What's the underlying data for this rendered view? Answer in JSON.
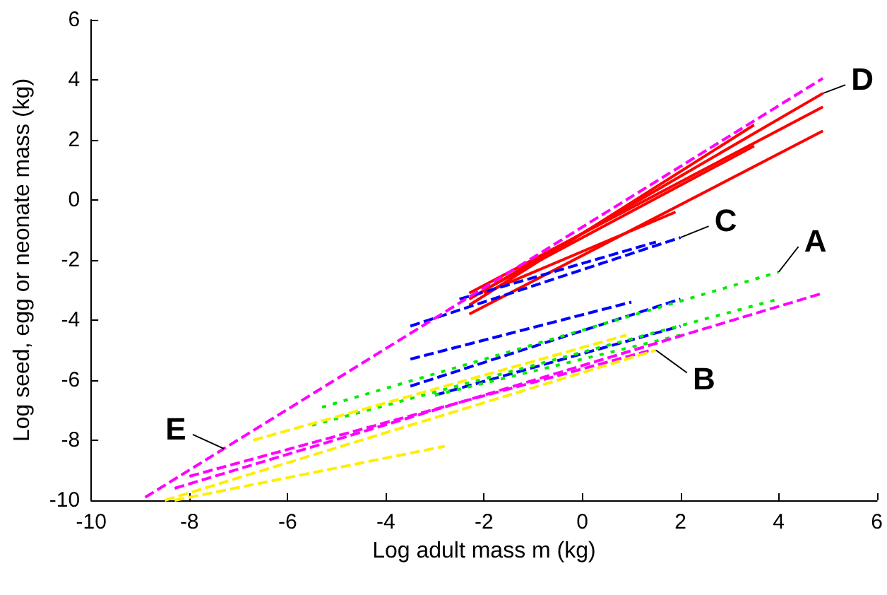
{
  "chart_data": {
    "type": "line",
    "xlabel": "Log adult mass m (kg)",
    "ylabel": "Log seed, egg or neonate mass (kg)",
    "xlim": [
      -10,
      6
    ],
    "xticks": [
      -10,
      -8,
      -6,
      -4,
      -2,
      0,
      2,
      4,
      6
    ],
    "ylim": [
      -10,
      6
    ],
    "yticks": [
      -10,
      -8,
      -6,
      -4,
      -2,
      0,
      2,
      4,
      6
    ],
    "marker": "none",
    "series": [
      {
        "color": "#ff0000",
        "line_style": "solid",
        "x": [
          -2.3,
          4.9
        ],
        "values": [
          -3.3,
          3.55
        ]
      },
      {
        "color": "#ff0000",
        "line_style": "solid",
        "x": [
          -2.3,
          4.9
        ],
        "values": [
          -3.1,
          3.1
        ]
      },
      {
        "color": "#ff0000",
        "line_style": "solid",
        "x": [
          -2.3,
          4.9
        ],
        "values": [
          -3.8,
          2.3
        ]
      },
      {
        "color": "#ff0000",
        "line_style": "solid",
        "x": [
          -2,
          3.5
        ],
        "values": [
          -3,
          1.8
        ]
      },
      {
        "color": "#ff0000",
        "line_style": "solid",
        "x": [
          -2.3,
          3.5
        ],
        "values": [
          -3.5,
          2.5
        ]
      },
      {
        "color": "#ff0000",
        "line_style": "solid",
        "x": [
          -2,
          1.9
        ],
        "values": [
          -3.1,
          -0.4
        ]
      },
      {
        "color": "#0000ff",
        "line_style": "dashed",
        "x": [
          -3.5,
          2
        ],
        "values": [
          -4.2,
          -1.25
        ]
      },
      {
        "color": "#0000ff",
        "line_style": "dashed",
        "x": [
          -2.5,
          1.5
        ],
        "values": [
          -3.3,
          -1.4
        ]
      },
      {
        "color": "#0000ff",
        "line_style": "dashed",
        "x": [
          -3.5,
          2
        ],
        "values": [
          -6.2,
          -3.3
        ]
      },
      {
        "color": "#0000ff",
        "line_style": "dashed",
        "x": [
          -3.5,
          1
        ],
        "values": [
          -5.3,
          -3.4
        ]
      },
      {
        "color": "#0000ff",
        "line_style": "dashed",
        "x": [
          -3,
          2
        ],
        "values": [
          -6.5,
          -4.2
        ]
      },
      {
        "color": "#00ee00",
        "line_style": "dotted",
        "x": [
          -5.3,
          4
        ],
        "values": [
          -6.9,
          -2.4
        ]
      },
      {
        "color": "#00ee00",
        "line_style": "dotted",
        "x": [
          -5.5,
          4
        ],
        "values": [
          -7.5,
          -3.3
        ]
      },
      {
        "color": "#00ee00",
        "line_style": "dotted",
        "x": [
          -3,
          2
        ],
        "values": [
          -6.5,
          -4.5
        ]
      },
      {
        "color": "#ff00ff",
        "line_style": "dashed",
        "x": [
          -8.9,
          4.9
        ],
        "values": [
          -9.9,
          4.05
        ]
      },
      {
        "color": "#ff00ff",
        "line_style": "dashed",
        "x": [
          -8.3,
          4.9
        ],
        "values": [
          -9.6,
          -3.1
        ]
      },
      {
        "color": "#ff00ff",
        "line_style": "dashed",
        "x": [
          -8,
          1.4
        ],
        "values": [
          -9.2,
          -5
        ]
      },
      {
        "color": "#ffee00",
        "line_style": "dashed",
        "x": [
          -8.5,
          1.5
        ],
        "values": [
          -10,
          -5
        ]
      },
      {
        "color": "#ffee00",
        "line_style": "dashed",
        "x": [
          -8.3,
          -2.8
        ],
        "values": [
          -10,
          -8.2
        ]
      },
      {
        "color": "#ffee00",
        "line_style": "dashed",
        "x": [
          -6.7,
          0.9
        ],
        "values": [
          -8,
          -4.5
        ]
      }
    ],
    "annotations": [
      {
        "text": "A",
        "x": 4,
        "y": -2.4
      },
      {
        "text": "B",
        "x": 1.5,
        "y": -5
      },
      {
        "text": "C",
        "x": 2,
        "y": -1.25
      },
      {
        "text": "D",
        "x": 4.9,
        "y": 3.55
      },
      {
        "text": "E",
        "x": -7.3,
        "y": -8.28
      }
    ]
  }
}
